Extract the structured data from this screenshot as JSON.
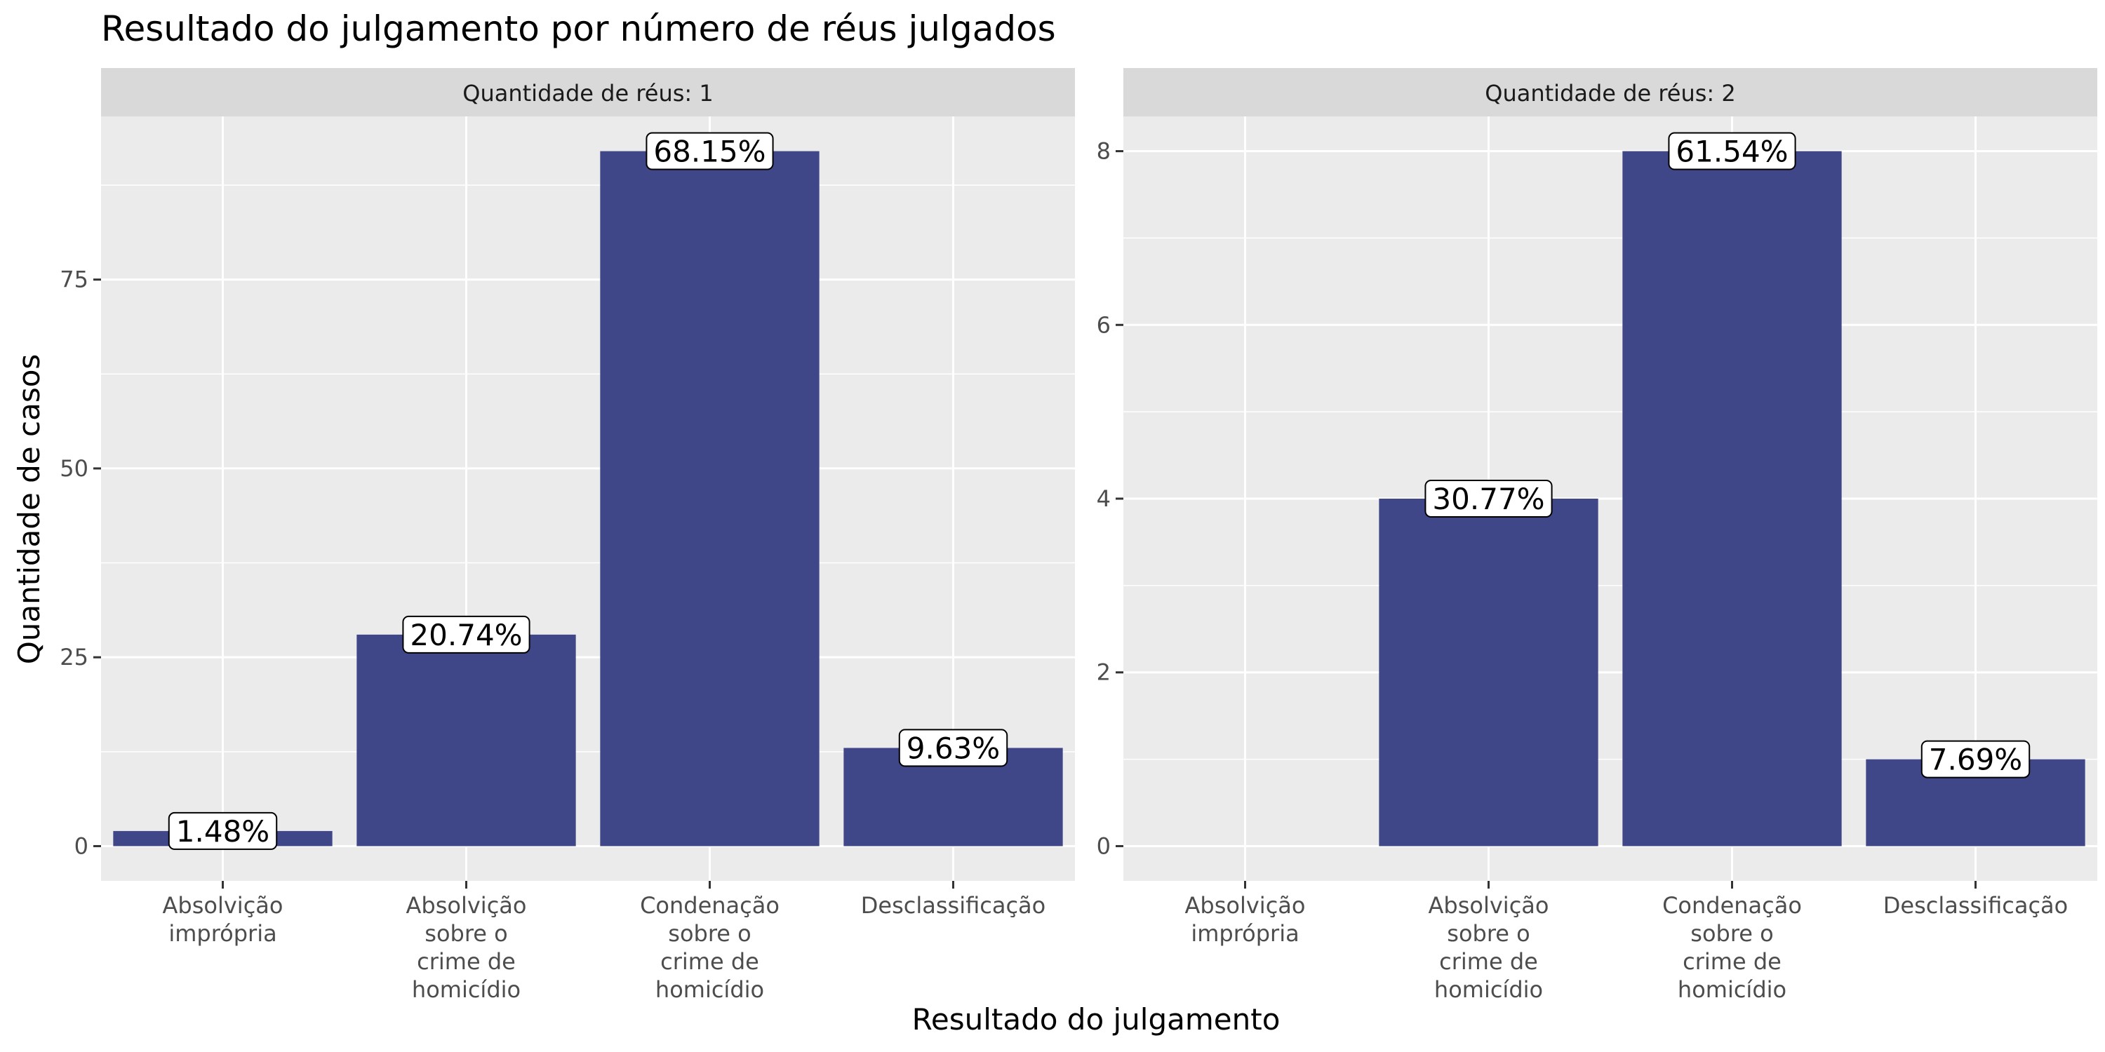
{
  "colors": {
    "panel_bg": "#EBEBEB",
    "strip_bg": "#D9D9D9",
    "grid": "#FFFFFF",
    "bar": "#404788",
    "text": "#1A1A1A",
    "axis_text": "#4D4D4D",
    "label_bg": "#FFFFFF",
    "label_border": "#000000"
  },
  "chart_data": {
    "type": "bar",
    "title": "Resultado do julgamento por número de réus julgados",
    "xlabel": "Resultado do julgamento",
    "ylabel": "Quantidade de casos",
    "categories": [
      [
        "Absolvição",
        "imprópria"
      ],
      [
        "Absolvição",
        "sobre o",
        "crime de",
        "homicídio"
      ],
      [
        "Condenação",
        "sobre o",
        "crime de",
        "homicídio"
      ],
      [
        "Desclassificação"
      ]
    ],
    "panels": [
      {
        "strip": "Quantidade de réus: 1",
        "values": [
          2,
          28,
          92,
          13
        ],
        "labels": [
          "1.48%",
          "20.74%",
          "68.15%",
          "9.63%"
        ],
        "ylim": [
          -4.6,
          96.6
        ],
        "yticks": [
          0,
          25,
          50,
          75
        ],
        "yminor": [
          12.5,
          37.5,
          62.5,
          87.5
        ]
      },
      {
        "strip": "Quantidade de réus: 2",
        "values": [
          0,
          4,
          8,
          1
        ],
        "labels": [
          "",
          "30.77%",
          "61.54%",
          "7.69%"
        ],
        "ylim": [
          -0.4,
          8.4
        ],
        "yticks": [
          0,
          2,
          4,
          6,
          8
        ],
        "yminor": [
          1,
          3,
          5,
          7
        ]
      }
    ]
  }
}
